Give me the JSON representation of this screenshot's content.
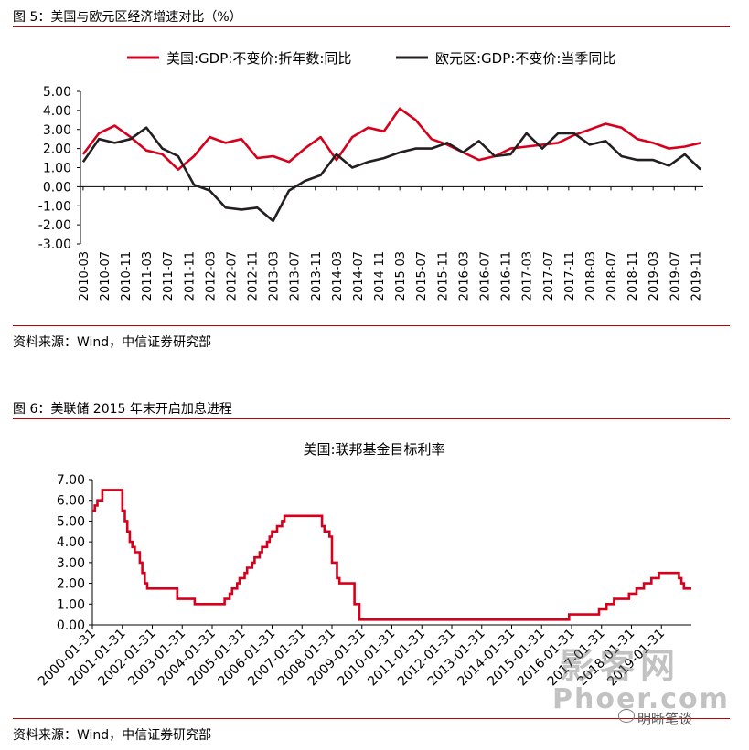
{
  "figure5": {
    "caption": "图 5：美国与欧元区经济增速对比（%）",
    "source": "资料来源：Wind，中信证券研究部"
  },
  "figure6": {
    "caption": "图 6：美联储 2015 年末开启加息进程",
    "source": "资料来源：Wind，中信证券研究部"
  },
  "watermark": {
    "line1": "影客网",
    "line2": "Phoer.com",
    "line3": "明晰笔谈",
    "icon": "wechat-icon"
  },
  "colors": {
    "red": "#d6001c",
    "black": "#231f20",
    "rule": "#c00000"
  },
  "chart_data": [
    {
      "type": "line",
      "title": "",
      "xlabel": "",
      "ylabel": "",
      "ylim": [
        -3,
        5
      ],
      "yticks": [
        "5.00",
        "4.00",
        "3.00",
        "2.00",
        "1.00",
        "0.00",
        "-1.00",
        "-2.00",
        "-3.00"
      ],
      "legend_position": "top",
      "x": [
        "2010-03",
        "2010-06",
        "2010-09",
        "2010-12",
        "2011-03",
        "2011-06",
        "2011-09",
        "2011-12",
        "2012-03",
        "2012-06",
        "2012-09",
        "2012-12",
        "2013-03",
        "2013-06",
        "2013-09",
        "2013-12",
        "2014-03",
        "2014-06",
        "2014-09",
        "2014-12",
        "2015-03",
        "2015-06",
        "2015-09",
        "2015-12",
        "2016-03",
        "2016-06",
        "2016-09",
        "2016-12",
        "2017-03",
        "2017-06",
        "2017-09",
        "2017-12",
        "2018-03",
        "2018-06",
        "2018-09",
        "2018-12",
        "2019-03",
        "2019-06",
        "2019-09",
        "2019-12"
      ],
      "xticks": [
        "2010-03",
        "2010-07",
        "2010-11",
        "2011-03",
        "2011-07",
        "2011-11",
        "2012-03",
        "2012-07",
        "2012-11",
        "2013-03",
        "2013-07",
        "2013-11",
        "2014-03",
        "2014-07",
        "2014-11",
        "2015-03",
        "2015-07",
        "2015-11",
        "2016-03",
        "2016-07",
        "2016-11",
        "2017-03",
        "2017-07",
        "2017-11",
        "2018-03",
        "2018-07",
        "2018-11",
        "2019-03",
        "2019-07",
        "2019-11"
      ],
      "series": [
        {
          "name": "美国:GDP:不变价:折年数:同比",
          "color": "#d6001c",
          "values": [
            1.7,
            2.8,
            3.2,
            2.6,
            1.9,
            1.7,
            0.9,
            1.6,
            2.6,
            2.3,
            2.5,
            1.5,
            1.6,
            1.3,
            2.0,
            2.6,
            1.4,
            2.6,
            3.1,
            2.9,
            4.1,
            3.5,
            2.5,
            2.2,
            1.8,
            1.4,
            1.6,
            2.0,
            2.1,
            2.2,
            2.3,
            2.7,
            3.0,
            3.3,
            3.1,
            2.5,
            2.3,
            2.0,
            2.1,
            2.3
          ]
        },
        {
          "name": "欧元区:GDP:不变价:当季同比",
          "color": "#231f20",
          "values": [
            1.3,
            2.5,
            2.3,
            2.5,
            3.1,
            2.0,
            1.6,
            0.1,
            -0.2,
            -1.1,
            -1.2,
            -1.1,
            -1.8,
            -0.2,
            0.3,
            0.6,
            1.7,
            1.0,
            1.3,
            1.5,
            1.8,
            2.0,
            2.0,
            2.3,
            1.8,
            2.4,
            1.6,
            1.7,
            2.8,
            2.0,
            2.8,
            2.8,
            2.2,
            2.4,
            1.6,
            1.4,
            1.4,
            1.1,
            1.7,
            0.9
          ]
        }
      ]
    },
    {
      "type": "line",
      "title": "美国:联邦基金目标利率",
      "xlabel": "",
      "ylabel": "",
      "ylim": [
        0,
        7
      ],
      "yticks": [
        "7.00",
        "6.00",
        "5.00",
        "4.00",
        "3.00",
        "2.00",
        "1.00",
        "0.00"
      ],
      "xticks": [
        "2000-01-31",
        "2001-01-31",
        "2002-01-31",
        "2003-01-31",
        "2004-01-31",
        "2005-01-31",
        "2006-01-31",
        "2007-01-31",
        "2008-01-31",
        "2009-01-31",
        "2010-01-31",
        "2011-01-31",
        "2012-01-31",
        "2013-01-31",
        "2014-01-31",
        "2015-01-31",
        "2016-01-31",
        "2017-01-31",
        "2018-01-31",
        "2019-01-31"
      ],
      "step_series": {
        "name": "美国:联邦基金目标利率",
        "color": "#d6001c",
        "points": [
          [
            "2000-01",
            5.5
          ],
          [
            "2000-02",
            5.75
          ],
          [
            "2000-03",
            6.0
          ],
          [
            "2000-05",
            6.5
          ],
          [
            "2001-01",
            5.5
          ],
          [
            "2001-02",
            5.0
          ],
          [
            "2001-03",
            4.5
          ],
          [
            "2001-04",
            4.0
          ],
          [
            "2001-05",
            3.75
          ],
          [
            "2001-06",
            3.5
          ],
          [
            "2001-08",
            3.0
          ],
          [
            "2001-09",
            2.5
          ],
          [
            "2001-10",
            2.0
          ],
          [
            "2001-11",
            1.75
          ],
          [
            "2002-11",
            1.25
          ],
          [
            "2003-06",
            1.0
          ],
          [
            "2004-06",
            1.25
          ],
          [
            "2004-08",
            1.5
          ],
          [
            "2004-09",
            1.75
          ],
          [
            "2004-11",
            2.0
          ],
          [
            "2004-12",
            2.25
          ],
          [
            "2005-02",
            2.5
          ],
          [
            "2005-03",
            2.75
          ],
          [
            "2005-05",
            3.0
          ],
          [
            "2005-06",
            3.25
          ],
          [
            "2005-08",
            3.5
          ],
          [
            "2005-09",
            3.75
          ],
          [
            "2005-11",
            4.0
          ],
          [
            "2005-12",
            4.25
          ],
          [
            "2006-01",
            4.5
          ],
          [
            "2006-03",
            4.75
          ],
          [
            "2006-05",
            5.0
          ],
          [
            "2006-06",
            5.25
          ],
          [
            "2007-09",
            4.75
          ],
          [
            "2007-10",
            4.5
          ],
          [
            "2007-12",
            4.25
          ],
          [
            "2008-01",
            3.0
          ],
          [
            "2008-03",
            2.25
          ],
          [
            "2008-04",
            2.0
          ],
          [
            "2008-10",
            1.0
          ],
          [
            "2008-12",
            0.25
          ],
          [
            "2015-12",
            0.5
          ],
          [
            "2016-12",
            0.75
          ],
          [
            "2017-03",
            1.0
          ],
          [
            "2017-06",
            1.25
          ],
          [
            "2017-12",
            1.5
          ],
          [
            "2018-03",
            1.75
          ],
          [
            "2018-06",
            2.0
          ],
          [
            "2018-09",
            2.25
          ],
          [
            "2018-12",
            2.5
          ],
          [
            "2019-08",
            2.25
          ],
          [
            "2019-09",
            2.0
          ],
          [
            "2019-10",
            1.75
          ],
          [
            "2019-12",
            1.75
          ]
        ]
      }
    }
  ]
}
